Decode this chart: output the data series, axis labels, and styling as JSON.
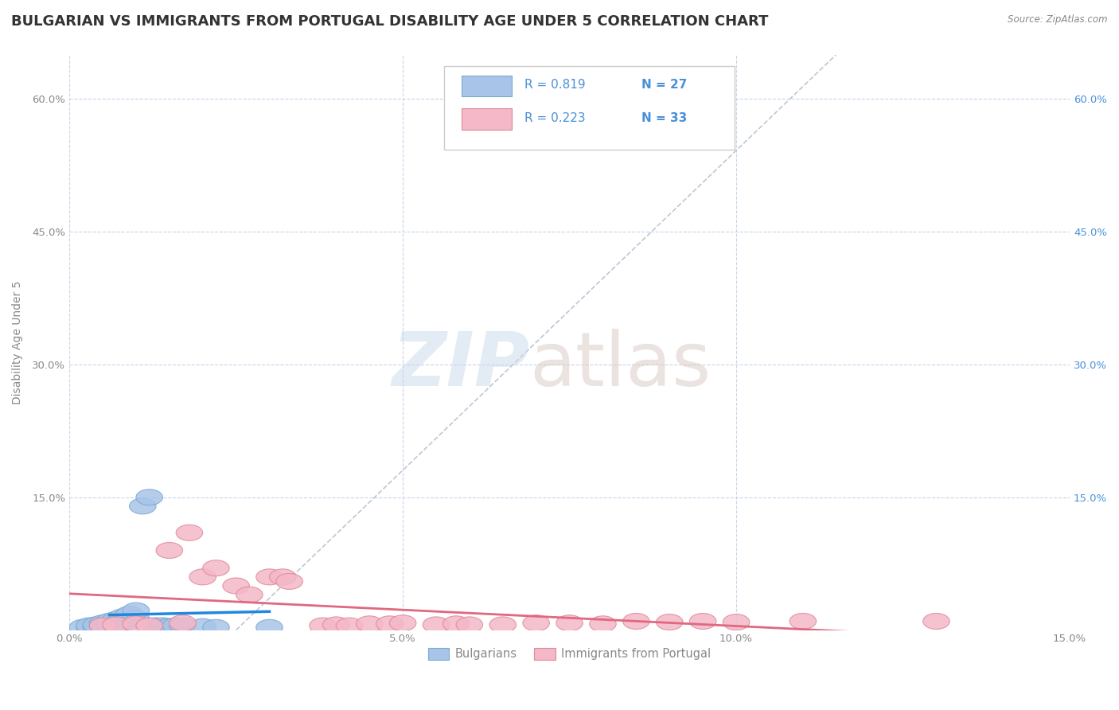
{
  "title": "BULGARIAN VS IMMIGRANTS FROM PORTUGAL DISABILITY AGE UNDER 5 CORRELATION CHART",
  "source": "Source: ZipAtlas.com",
  "ylabel": "Disability Age Under 5",
  "xlabel": "",
  "xlim": [
    0.0,
    0.15
  ],
  "ylim": [
    0.0,
    0.65
  ],
  "xticks": [
    0.0,
    0.05,
    0.1,
    0.15
  ],
  "xtick_labels": [
    "0.0%",
    "5.0%",
    "10.0%",
    "15.0%"
  ],
  "yticks": [
    0.0,
    0.15,
    0.3,
    0.45,
    0.6
  ],
  "ytick_labels": [
    "",
    "15.0%",
    "30.0%",
    "45.0%",
    "60.0%"
  ],
  "ytick_labels_right": [
    "15.0%",
    "30.0%",
    "45.0%",
    "60.0%"
  ],
  "bg_color": "#ffffff",
  "grid_color": "#c8d4e8",
  "bulgarian_color": "#a8c4e8",
  "bulgarian_edge": "#7aaad0",
  "portugal_color": "#f4b8c8",
  "portugal_edge": "#e08898",
  "bulgarian_line_color": "#2288dd",
  "portugal_line_color": "#e06880",
  "trend_line_color": "#b0b8c8",
  "R_bulgarian": 0.819,
  "N_bulgarian": 27,
  "R_portugal": 0.223,
  "N_portugal": 33,
  "bulgarian_x": [
    0.002,
    0.003,
    0.003,
    0.004,
    0.004,
    0.005,
    0.005,
    0.006,
    0.006,
    0.007,
    0.007,
    0.008,
    0.008,
    0.009,
    0.009,
    0.01,
    0.01,
    0.011,
    0.012,
    0.013,
    0.014,
    0.015,
    0.016,
    0.017,
    0.02,
    0.022,
    0.03
  ],
  "bulgarian_y": [
    0.003,
    0.004,
    0.005,
    0.004,
    0.006,
    0.005,
    0.008,
    0.006,
    0.01,
    0.007,
    0.012,
    0.008,
    0.015,
    0.01,
    0.018,
    0.013,
    0.022,
    0.14,
    0.15,
    0.005,
    0.005,
    0.004,
    0.005,
    0.005,
    0.004,
    0.003,
    0.003
  ],
  "portugal_x": [
    0.005,
    0.007,
    0.01,
    0.012,
    0.015,
    0.017,
    0.018,
    0.02,
    0.022,
    0.025,
    0.027,
    0.03,
    0.032,
    0.033,
    0.038,
    0.04,
    0.042,
    0.045,
    0.048,
    0.05,
    0.055,
    0.058,
    0.06,
    0.065,
    0.07,
    0.075,
    0.08,
    0.085,
    0.09,
    0.095,
    0.1,
    0.11,
    0.13
  ],
  "portugal_y": [
    0.005,
    0.006,
    0.007,
    0.005,
    0.09,
    0.008,
    0.11,
    0.06,
    0.07,
    0.05,
    0.04,
    0.06,
    0.06,
    0.055,
    0.005,
    0.006,
    0.005,
    0.007,
    0.007,
    0.008,
    0.006,
    0.007,
    0.006,
    0.006,
    0.008,
    0.008,
    0.007,
    0.01,
    0.009,
    0.01,
    0.009,
    0.01,
    0.01
  ],
  "watermark_zip_color": "#c8d8ec",
  "watermark_atlas_color": "#d8c8c0",
  "title_color": "#333333",
  "label_color": "#4a90d9",
  "tick_color": "#888888",
  "title_fontsize": 13,
  "axis_fontsize": 10,
  "tick_fontsize": 9.5,
  "legend_fontsize": 11
}
